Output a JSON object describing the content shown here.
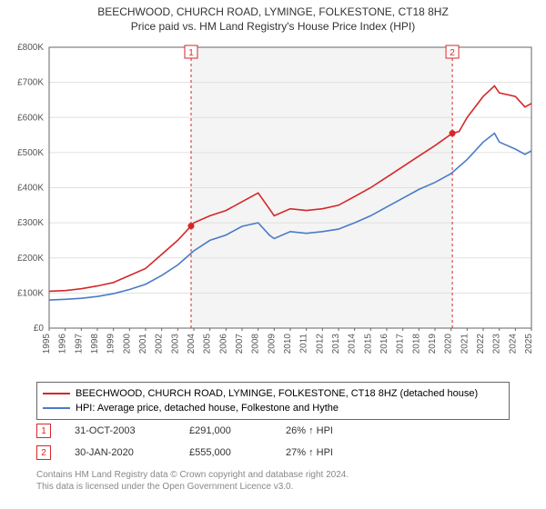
{
  "title": {
    "line1": "BEECHWOOD, CHURCH ROAD, LYMINGE, FOLKESTONE, CT18 8HZ",
    "line2": "Price paid vs. HM Land Registry's House Price Index (HPI)",
    "fontsize": 12,
    "color": "#333333"
  },
  "chart": {
    "type": "line",
    "background_color": "#ffffff",
    "grid_color": "#e0e0e0",
    "axis_color": "#666666",
    "shaded_region": {
      "x_start": 2003.83,
      "x_end": 2020.08,
      "fill": "#f4f4f4"
    },
    "xlim": [
      1995,
      2025
    ],
    "ylim": [
      0,
      800000
    ],
    "ytick_step": 100000,
    "ytick_labels": [
      "£0",
      "£100K",
      "£200K",
      "£300K",
      "£400K",
      "£500K",
      "£600K",
      "£700K",
      "£800K"
    ],
    "xtick_step": 1,
    "xtick_labels": [
      "1995",
      "1996",
      "1997",
      "1998",
      "1999",
      "2000",
      "2001",
      "2002",
      "2003",
      "2004",
      "2005",
      "2006",
      "2007",
      "2008",
      "2009",
      "2010",
      "2011",
      "2012",
      "2013",
      "2014",
      "2015",
      "2016",
      "2017",
      "2018",
      "2019",
      "2020",
      "2021",
      "2022",
      "2023",
      "2024",
      "2025"
    ],
    "tick_fontsize": 10,
    "tick_color": "#555555",
    "series": [
      {
        "name": "BEECHWOOD, CHURCH ROAD, LYMINGE, FOLKESTONE, CT18 8HZ (detached house)",
        "color": "#d62728",
        "line_width": 1.6,
        "points": [
          [
            1995,
            105000
          ],
          [
            1996,
            107000
          ],
          [
            1997,
            112000
          ],
          [
            1998,
            120000
          ],
          [
            1999,
            130000
          ],
          [
            2000,
            150000
          ],
          [
            2001,
            170000
          ],
          [
            2002,
            210000
          ],
          [
            2003,
            250000
          ],
          [
            2003.83,
            291000
          ],
          [
            2004,
            300000
          ],
          [
            2005,
            320000
          ],
          [
            2006,
            335000
          ],
          [
            2007,
            360000
          ],
          [
            2008,
            385000
          ],
          [
            2008.7,
            340000
          ],
          [
            2009,
            320000
          ],
          [
            2010,
            340000
          ],
          [
            2011,
            335000
          ],
          [
            2012,
            340000
          ],
          [
            2013,
            350000
          ],
          [
            2014,
            375000
          ],
          [
            2015,
            400000
          ],
          [
            2016,
            430000
          ],
          [
            2017,
            460000
          ],
          [
            2018,
            490000
          ],
          [
            2019,
            520000
          ],
          [
            2020.08,
            555000
          ],
          [
            2020.5,
            560000
          ],
          [
            2021,
            600000
          ],
          [
            2022,
            660000
          ],
          [
            2022.7,
            690000
          ],
          [
            2023,
            670000
          ],
          [
            2024,
            660000
          ],
          [
            2024.6,
            630000
          ],
          [
            2025,
            640000
          ]
        ]
      },
      {
        "name": "HPI: Average price, detached house, Folkestone and Hythe",
        "color": "#4a7bc8",
        "line_width": 1.6,
        "points": [
          [
            1995,
            80000
          ],
          [
            1996,
            82000
          ],
          [
            1997,
            85000
          ],
          [
            1998,
            90000
          ],
          [
            1999,
            98000
          ],
          [
            2000,
            110000
          ],
          [
            2001,
            125000
          ],
          [
            2002,
            150000
          ],
          [
            2003,
            180000
          ],
          [
            2004,
            220000
          ],
          [
            2005,
            250000
          ],
          [
            2006,
            265000
          ],
          [
            2007,
            290000
          ],
          [
            2008,
            300000
          ],
          [
            2008.7,
            265000
          ],
          [
            2009,
            255000
          ],
          [
            2010,
            275000
          ],
          [
            2011,
            270000
          ],
          [
            2012,
            275000
          ],
          [
            2013,
            282000
          ],
          [
            2014,
            300000
          ],
          [
            2015,
            320000
          ],
          [
            2016,
            345000
          ],
          [
            2017,
            370000
          ],
          [
            2018,
            395000
          ],
          [
            2019,
            415000
          ],
          [
            2020,
            440000
          ],
          [
            2021,
            480000
          ],
          [
            2022,
            530000
          ],
          [
            2022.7,
            555000
          ],
          [
            2023,
            530000
          ],
          [
            2024,
            510000
          ],
          [
            2024.6,
            495000
          ],
          [
            2025,
            505000
          ]
        ]
      }
    ],
    "event_markers": [
      {
        "label": "1",
        "x": 2003.83,
        "y": 291000,
        "line_color": "#d62728",
        "dash": "3,3"
      },
      {
        "label": "2",
        "x": 2020.08,
        "y": 555000,
        "line_color": "#d62728",
        "dash": "3,3"
      }
    ]
  },
  "legend": {
    "items": [
      {
        "color": "#d62728",
        "label": "BEECHWOOD, CHURCH ROAD, LYMINGE, FOLKESTONE, CT18 8HZ (detached house)"
      },
      {
        "color": "#4a7bc8",
        "label": "HPI: Average price, detached house, Folkestone and Hythe"
      }
    ]
  },
  "events": [
    {
      "badge": "1",
      "date": "31-OCT-2003",
      "price": "£291,000",
      "note": "26% ↑ HPI"
    },
    {
      "badge": "2",
      "date": "30-JAN-2020",
      "price": "£555,000",
      "note": "27% ↑ HPI"
    }
  ],
  "footer": {
    "line1": "Contains HM Land Registry data © Crown copyright and database right 2024.",
    "line2": "This data is licensed under the Open Government Licence v3.0."
  }
}
